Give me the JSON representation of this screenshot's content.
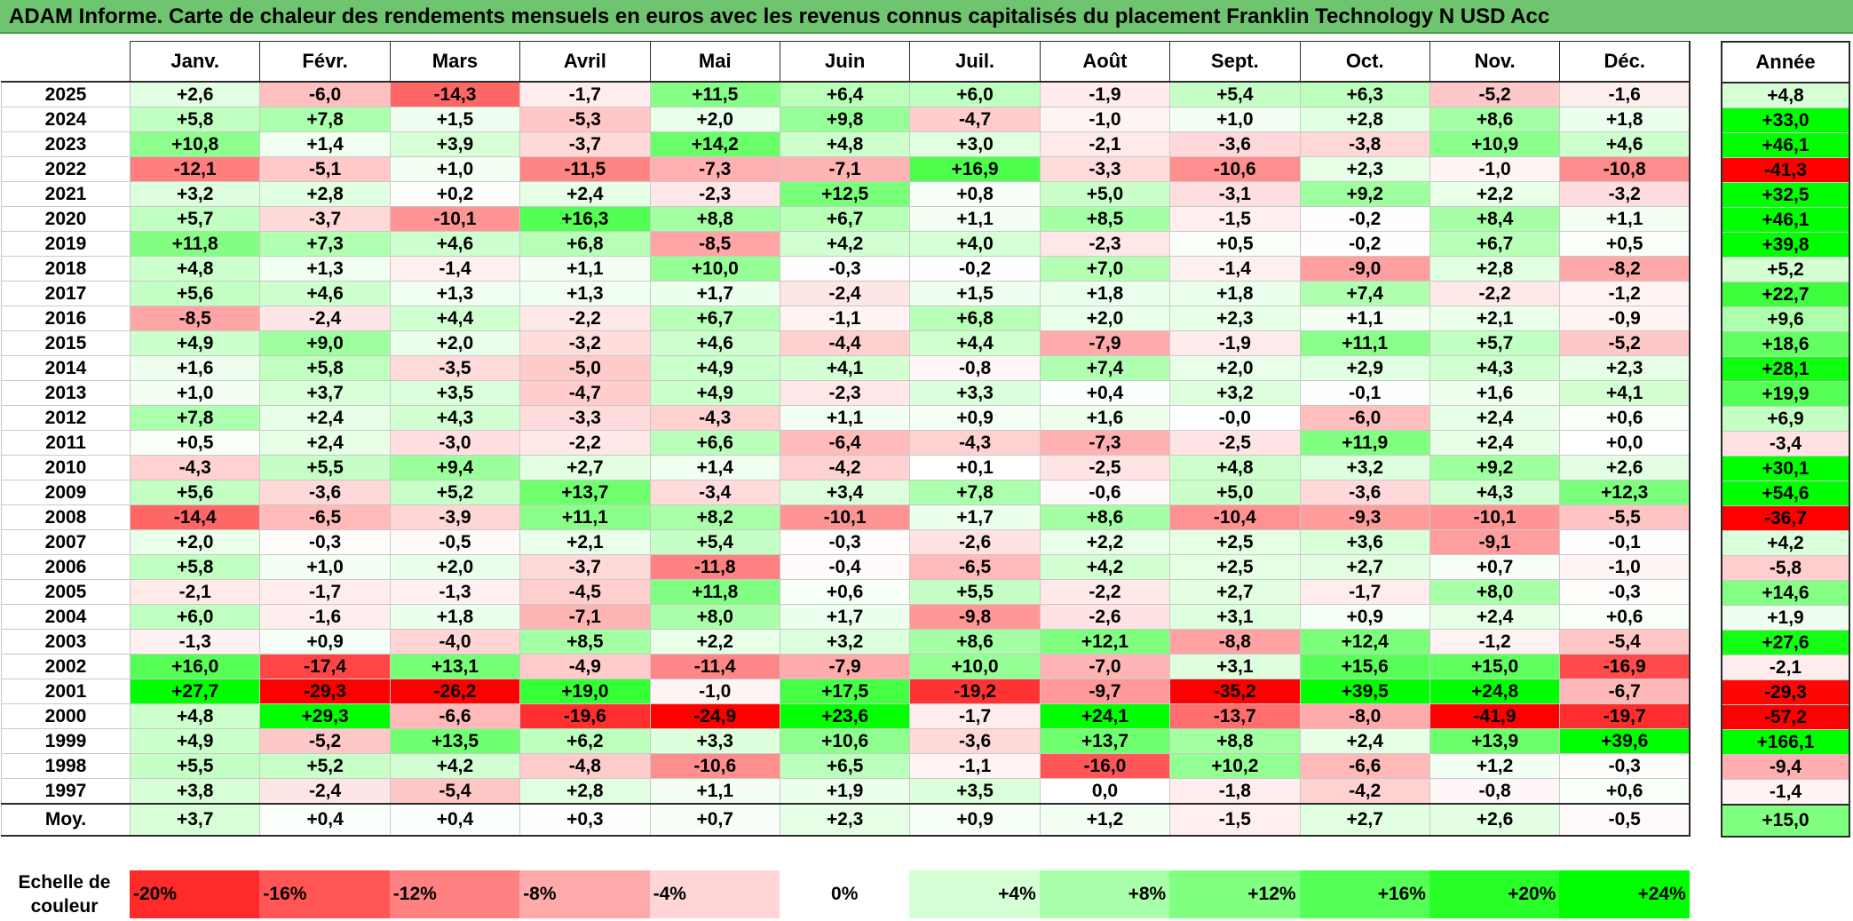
{
  "title": "ADAM Informe. Carte de chaleur des rendements mensuels en euros avec les revenus connus capitalisés du placement Franklin Technology N USD Acc",
  "chart_data": {
    "type": "heatmap",
    "months": [
      "Janv.",
      "Févr.",
      "Mars",
      "Avril",
      "Mai",
      "Juin",
      "Juil.",
      "Août",
      "Sept.",
      "Oct.",
      "Nov.",
      "Déc."
    ],
    "year_header": "Année",
    "rows": [
      {
        "year": "2025",
        "months": [
          "+2,6",
          "-6,0",
          "-14,3",
          "-1,7",
          "+11,5",
          "+6,4",
          "+6,0",
          "-1,9",
          "+5,4",
          "+6,3",
          "-5,2",
          "-1,6"
        ],
        "annual": "+4,8"
      },
      {
        "year": "2024",
        "months": [
          "+5,8",
          "+7,8",
          "+1,5",
          "-5,3",
          "+2,0",
          "+9,8",
          "-4,7",
          "-1,0",
          "+1,0",
          "+2,8",
          "+8,6",
          "+1,8"
        ],
        "annual": "+33,0"
      },
      {
        "year": "2023",
        "months": [
          "+10,8",
          "+1,4",
          "+3,9",
          "-3,7",
          "+14,2",
          "+4,8",
          "+3,0",
          "-2,1",
          "-3,6",
          "-3,8",
          "+10,9",
          "+4,6"
        ],
        "annual": "+46,1"
      },
      {
        "year": "2022",
        "months": [
          "-12,1",
          "-5,1",
          "+1,0",
          "-11,5",
          "-7,3",
          "-7,1",
          "+16,9",
          "-3,3",
          "-10,6",
          "+2,3",
          "-1,0",
          "-10,8"
        ],
        "annual": "-41,3"
      },
      {
        "year": "2021",
        "months": [
          "+3,2",
          "+2,8",
          "+0,2",
          "+2,4",
          "-2,3",
          "+12,5",
          "+0,8",
          "+5,0",
          "-3,1",
          "+9,2",
          "+2,2",
          "-3,2"
        ],
        "annual": "+32,5"
      },
      {
        "year": "2020",
        "months": [
          "+5,7",
          "-3,7",
          "-10,1",
          "+16,3",
          "+8,8",
          "+6,7",
          "+1,1",
          "+8,5",
          "-1,5",
          "-0,2",
          "+8,4",
          "+1,1"
        ],
        "annual": "+46,1"
      },
      {
        "year": "2019",
        "months": [
          "+11,8",
          "+7,3",
          "+4,6",
          "+6,8",
          "-8,5",
          "+4,2",
          "+4,0",
          "-2,3",
          "+0,5",
          "-0,2",
          "+6,7",
          "+0,5"
        ],
        "annual": "+39,8"
      },
      {
        "year": "2018",
        "months": [
          "+4,8",
          "+1,3",
          "-1,4",
          "+1,1",
          "+10,0",
          "-0,3",
          "-0,2",
          "+7,0",
          "-1,4",
          "-9,0",
          "+2,8",
          "-8,2"
        ],
        "annual": "+5,2"
      },
      {
        "year": "2017",
        "months": [
          "+5,6",
          "+4,6",
          "+1,3",
          "+1,3",
          "+1,7",
          "-2,4",
          "+1,5",
          "+1,8",
          "+1,8",
          "+7,4",
          "-2,2",
          "-1,2"
        ],
        "annual": "+22,7"
      },
      {
        "year": "2016",
        "months": [
          "-8,5",
          "-2,4",
          "+4,4",
          "-2,2",
          "+6,7",
          "-1,1",
          "+6,8",
          "+2,0",
          "+2,3",
          "+1,1",
          "+2,1",
          "-0,9"
        ],
        "annual": "+9,6"
      },
      {
        "year": "2015",
        "months": [
          "+4,9",
          "+9,0",
          "+2,0",
          "-3,2",
          "+4,6",
          "-4,4",
          "+4,4",
          "-7,9",
          "-1,9",
          "+11,1",
          "+5,7",
          "-5,2"
        ],
        "annual": "+18,6"
      },
      {
        "year": "2014",
        "months": [
          "+1,6",
          "+5,8",
          "-3,5",
          "-5,0",
          "+4,9",
          "+4,1",
          "-0,8",
          "+7,4",
          "+2,0",
          "+2,9",
          "+4,3",
          "+2,3"
        ],
        "annual": "+28,1"
      },
      {
        "year": "2013",
        "months": [
          "+1,0",
          "+3,7",
          "+3,5",
          "-4,7",
          "+4,9",
          "-2,3",
          "+3,3",
          "+0,4",
          "+3,2",
          "-0,1",
          "+1,6",
          "+4,1"
        ],
        "annual": "+19,9"
      },
      {
        "year": "2012",
        "months": [
          "+7,8",
          "+2,4",
          "+4,3",
          "-3,3",
          "-4,3",
          "+1,1",
          "+0,9",
          "+1,6",
          "-0,0",
          "-6,0",
          "+2,4",
          "+0,6"
        ],
        "annual": "+6,9"
      },
      {
        "year": "2011",
        "months": [
          "+0,5",
          "+2,4",
          "-3,0",
          "-2,2",
          "+6,6",
          "-6,4",
          "-4,3",
          "-7,3",
          "-2,5",
          "+11,9",
          "+2,4",
          "+0,0"
        ],
        "annual": "-3,4"
      },
      {
        "year": "2010",
        "months": [
          "-4,3",
          "+5,5",
          "+9,4",
          "+2,7",
          "+1,4",
          "-4,2",
          "+0,1",
          "-2,5",
          "+4,8",
          "+3,2",
          "+9,2",
          "+2,6"
        ],
        "annual": "+30,1"
      },
      {
        "year": "2009",
        "months": [
          "+5,6",
          "-3,6",
          "+5,2",
          "+13,7",
          "-3,4",
          "+3,4",
          "+7,8",
          "-0,6",
          "+5,0",
          "-3,6",
          "+4,3",
          "+12,3"
        ],
        "annual": "+54,6"
      },
      {
        "year": "2008",
        "months": [
          "-14,4",
          "-6,5",
          "-3,9",
          "+11,1",
          "+8,2",
          "-10,1",
          "+1,7",
          "+8,6",
          "-10,4",
          "-9,3",
          "-10,1",
          "-5,5"
        ],
        "annual": "-36,7"
      },
      {
        "year": "2007",
        "months": [
          "+2,0",
          "-0,3",
          "-0,5",
          "+2,1",
          "+5,4",
          "-0,3",
          "-2,6",
          "+2,2",
          "+2,5",
          "+3,6",
          "-9,1",
          "-0,1"
        ],
        "annual": "+4,2"
      },
      {
        "year": "2006",
        "months": [
          "+5,8",
          "+1,0",
          "+2,0",
          "-3,7",
          "-11,8",
          "-0,4",
          "-6,5",
          "+4,2",
          "+2,5",
          "+2,7",
          "+0,7",
          "-1,0"
        ],
        "annual": "-5,8"
      },
      {
        "year": "2005",
        "months": [
          "-2,1",
          "-1,7",
          "-1,3",
          "-4,5",
          "+11,8",
          "+0,6",
          "+5,5",
          "-2,2",
          "+2,7",
          "-1,7",
          "+8,0",
          "-0,3"
        ],
        "annual": "+14,6"
      },
      {
        "year": "2004",
        "months": [
          "+6,0",
          "-1,6",
          "+1,8",
          "-7,1",
          "+8,0",
          "+1,7",
          "-9,8",
          "-2,6",
          "+3,1",
          "+0,9",
          "+2,4",
          "+0,6"
        ],
        "annual": "+1,9"
      },
      {
        "year": "2003",
        "months": [
          "-1,3",
          "+0,9",
          "-4,0",
          "+8,5",
          "+2,2",
          "+3,2",
          "+8,6",
          "+12,1",
          "-8,8",
          "+12,4",
          "-1,2",
          "-5,4"
        ],
        "annual": "+27,6"
      },
      {
        "year": "2002",
        "months": [
          "+16,0",
          "-17,4",
          "+13,1",
          "-4,9",
          "-11,4",
          "-7,9",
          "+10,0",
          "-7,0",
          "+3,1",
          "+15,6",
          "+15,0",
          "-16,9"
        ],
        "annual": "-2,1"
      },
      {
        "year": "2001",
        "months": [
          "+27,7",
          "-29,3",
          "-26,2",
          "+19,0",
          "-1,0",
          "+17,5",
          "-19,2",
          "-9,7",
          "-35,2",
          "+39,5",
          "+24,8",
          "-6,7"
        ],
        "annual": "-29,3"
      },
      {
        "year": "2000",
        "months": [
          "+4,8",
          "+29,3",
          "-6,6",
          "-19,6",
          "-24,9",
          "+23,6",
          "-1,7",
          "+24,1",
          "-13,7",
          "-8,0",
          "-41,9",
          "-19,7"
        ],
        "annual": "-57,2"
      },
      {
        "year": "1999",
        "months": [
          "+4,9",
          "-5,2",
          "+13,5",
          "+6,2",
          "+3,3",
          "+10,6",
          "-3,6",
          "+13,7",
          "+8,8",
          "+2,4",
          "+13,9",
          "+39,6"
        ],
        "annual": "+166,1"
      },
      {
        "year": "1998",
        "months": [
          "+5,5",
          "+5,2",
          "+4,2",
          "-4,8",
          "-10,6",
          "+6,5",
          "-1,1",
          "-16,0",
          "+10,2",
          "-6,6",
          "+1,2",
          "-0,3"
        ],
        "annual": "-9,4"
      },
      {
        "year": "1997",
        "months": [
          "+3,8",
          "-2,4",
          "-5,4",
          "+2,8",
          "+1,1",
          "+1,9",
          "+3,5",
          "0,0",
          "-1,8",
          "-4,2",
          "-0,8",
          "+0,6"
        ],
        "annual": "-1,4"
      }
    ],
    "average": {
      "label": "Moy.",
      "months": [
        "+3,7",
        "+0,4",
        "+0,4",
        "+0,3",
        "+0,7",
        "+2,3",
        "+0,9",
        "+1,2",
        "-1,5",
        "+2,7",
        "+2,6",
        "-0,5"
      ],
      "annual": "+15,0"
    },
    "scale": {
      "label_line1": "Echelle de",
      "label_line2": "couleur",
      "steps": [
        "-20%",
        "-16%",
        "-12%",
        "-8%",
        "-4%",
        "0%",
        "+4%",
        "+8%",
        "+12%",
        "+16%",
        "+20%",
        "+24%"
      ]
    },
    "colors": {
      "negative": "#ff0000",
      "neutral": "#ffffff",
      "positive": "#00ff00",
      "title_bg": "#6fc46f"
    }
  }
}
